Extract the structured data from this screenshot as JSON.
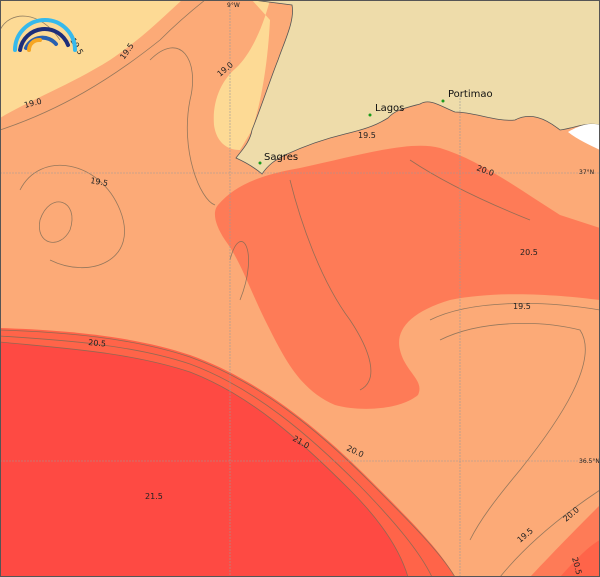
{
  "map": {
    "type": "sea surface temperature contour map",
    "colors": {
      "land": "#EEDCAA",
      "sea_19_0": "#FDDA95",
      "sea_19_5": "#FCAA77",
      "sea_20_0": "#FE7B57",
      "sea_20_5": "#FF6449",
      "sea_21_5": "#FE4A43",
      "no_data": "#FFFFFF"
    },
    "gridlines": {
      "lon": "9°W",
      "lat1": "37°N",
      "lat2": "36.5°N"
    },
    "towns": [
      "Sagres",
      "Lagos",
      "Portimao"
    ],
    "contour_labels": [
      "19.5",
      "19.5",
      "19.0",
      "19.0",
      "19.5",
      "19.5",
      "20.0",
      "20.5",
      "19.5",
      "20.5",
      "21.0",
      "20.0",
      "21.5",
      "19.5",
      "20.0",
      "20.5"
    ],
    "logo": "rainbow-arc-logo"
  }
}
